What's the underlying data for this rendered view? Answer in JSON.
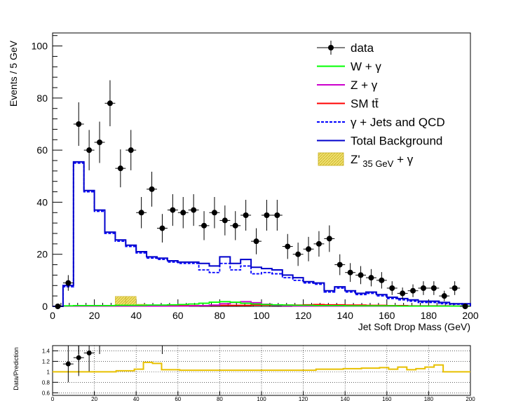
{
  "chart_data": [
    {
      "type": "histogram",
      "panel": "main",
      "xlabel": "Jet Soft Drop Mass (GeV)",
      "ylabel": "Events / 5 GeV",
      "xlim": [
        0,
        200
      ],
      "ylim": [
        0,
        105
      ],
      "bin_width": 5,
      "grid": false,
      "legend_position": "top-right",
      "x_ticks": [
        "0",
        "20",
        "40",
        "60",
        "80",
        "100",
        "120",
        "140",
        "160",
        "180",
        "200"
      ],
      "y_ticks": [
        "0",
        "20",
        "40",
        "60",
        "80",
        "100"
      ],
      "legend": [
        {
          "label": "data",
          "style": "marker",
          "color": "#000000"
        },
        {
          "label": "W + γ",
          "style": "line",
          "color": "#00ff00"
        },
        {
          "label": "Z + γ",
          "style": "line",
          "color": "#cc00cc"
        },
        {
          "label": "SM tt̄",
          "style": "line",
          "color": "#ff0000"
        },
        {
          "label": "γ + Jets and QCD",
          "style": "dashed",
          "color": "#0000ff"
        },
        {
          "label": "Total Background",
          "style": "line",
          "color": "#0000cc"
        },
        {
          "label": "Z'",
          "sub": "35 GeV",
          "tail": " + γ",
          "style": "fill",
          "color": "#e8d64a"
        }
      ],
      "data_points": {
        "x": [
          2.5,
          7.5,
          12.5,
          17.5,
          22.5,
          27.5,
          32.5,
          37.5,
          42.5,
          47.5,
          52.5,
          57.5,
          62.5,
          67.5,
          72.5,
          77.5,
          82.5,
          87.5,
          92.5,
          97.5,
          102.5,
          107.5,
          112.5,
          117.5,
          122.5,
          127.5,
          132.5,
          137.5,
          142.5,
          147.5,
          152.5,
          157.5,
          162.5,
          167.5,
          172.5,
          177.5,
          182.5,
          187.5,
          192.5,
          197.5
        ],
        "y": [
          0,
          9,
          70,
          60,
          63,
          78,
          53,
          60,
          36,
          45,
          30,
          37,
          36,
          37,
          31,
          36,
          33,
          31,
          35,
          25,
          35,
          35,
          23,
          20,
          22,
          24,
          26,
          16,
          13,
          12,
          11,
          10,
          7,
          5,
          6,
          7,
          7,
          4,
          7,
          0
        ]
      },
      "series": [
        {
          "name": "Total Background",
          "values": [
            0,
            8,
            55.5,
            44.5,
            37,
            28.5,
            25.5,
            23.5,
            21,
            19,
            18.5,
            17.5,
            17,
            17,
            16.5,
            15.5,
            19,
            16.5,
            18,
            15,
            14.5,
            14,
            12,
            11,
            9.5,
            9,
            6,
            7.5,
            6,
            5,
            5.5,
            4.5,
            3.5,
            3,
            2.5,
            2,
            2,
            1.5,
            1,
            1
          ]
        },
        {
          "name": "γ + Jets and QCD",
          "values": [
            0,
            7.5,
            55,
            44,
            36.5,
            28,
            25,
            23,
            20.5,
            18.5,
            18,
            17,
            16.5,
            16.5,
            14,
            13,
            16.5,
            14,
            15.5,
            12.5,
            13,
            12.5,
            11,
            10,
            9,
            8.5,
            5.5,
            7,
            5.5,
            4.5,
            5,
            4,
            3,
            2.5,
            2,
            1.5,
            1.5,
            1,
            0.8,
            0.8
          ]
        },
        {
          "name": "W + γ",
          "values": [
            0,
            0.2,
            0.3,
            0.3,
            0.3,
            0.3,
            0.4,
            0.4,
            0.4,
            0.5,
            0.5,
            0.6,
            0.7,
            0.9,
            1.2,
            1.6,
            1.8,
            1.6,
            1.2,
            0.9,
            0.7,
            0.6,
            0.5,
            0.4,
            0.4,
            0.3,
            0.3,
            0.3,
            0.2,
            0.2,
            0.2,
            0.2,
            0.2,
            0.1,
            0.1,
            0.1,
            0.1,
            0.1,
            0.1,
            0.1
          ]
        },
        {
          "name": "Z + γ",
          "values": [
            0,
            0.1,
            0.1,
            0.1,
            0.1,
            0.1,
            0.1,
            0.1,
            0.1,
            0.1,
            0.1,
            0.1,
            0.1,
            0.2,
            0.3,
            0.5,
            1.0,
            1.5,
            1.8,
            1.4,
            0.8,
            0.4,
            0.2,
            0.1,
            0.1,
            0.1,
            0.1,
            0.1,
            0.1,
            0.1,
            0.1,
            0.1,
            0.1,
            0.1,
            0.1,
            0.1,
            0.1,
            0.1,
            0.1,
            0.1
          ]
        },
        {
          "name": "SM tt̄",
          "values": [
            0,
            0.1,
            0.1,
            0.1,
            0.1,
            0.1,
            0.1,
            0.2,
            0.2,
            0.2,
            0.2,
            0.3,
            0.3,
            0.3,
            0.3,
            0.4,
            0.4,
            0.4,
            0.4,
            0.5,
            0.5,
            0.5,
            0.5,
            0.5,
            0.6,
            0.7,
            0.6,
            0.6,
            0.5,
            0.5,
            0.4,
            0.4,
            0.3,
            0.3,
            0.2,
            0.2,
            0.2,
            0.2,
            0.1,
            0.1
          ]
        },
        {
          "name": "Z'35 GeV + γ",
          "values": [
            0,
            0,
            0,
            0,
            0,
            0,
            3.8,
            3.8,
            0.8,
            0.4,
            0,
            0,
            0,
            0,
            0,
            0,
            0,
            0,
            0,
            0,
            0,
            0,
            0,
            0,
            0,
            0,
            0,
            0,
            0,
            0,
            0,
            0,
            0,
            0,
            0,
            0,
            0,
            0,
            0,
            0
          ]
        }
      ]
    },
    {
      "type": "ratio",
      "panel": "ratio",
      "ylabel": "Data/Prediction",
      "xlim": [
        0,
        200
      ],
      "ylim": [
        0.55,
        1.5
      ],
      "grid": true,
      "x_ticks": [
        "0",
        "20",
        "40",
        "60",
        "80",
        "100",
        "120",
        "140",
        "160",
        "180",
        "200"
      ],
      "y_ticks": [
        "0.6",
        "0.8",
        "1",
        "1.2",
        "1.4"
      ],
      "points": {
        "x": [
          7.5,
          12.5,
          17.5
        ],
        "y": [
          1.15,
          1.27,
          1.36
        ]
      },
      "signal_ratio": [
        1.0,
        1.0,
        1.0,
        1.0,
        1.0,
        1.0,
        1.0,
        1.02,
        1.02,
        1.05,
        1.18,
        1.16,
        1.04,
        1.04,
        1.03,
        1.03,
        1.03,
        1.03,
        1.03,
        1.03,
        1.03,
        1.03,
        1.03,
        1.03,
        1.03,
        1.03,
        1.03,
        1.03,
        1.03,
        1.05,
        1.05,
        1.05,
        1.06,
        1.06,
        1.07,
        1.07,
        1.08,
        1.05,
        1.09,
        1.04,
        1.06,
        1.09,
        1.13,
        1.0,
        1.0,
        1.0
      ]
    }
  ]
}
